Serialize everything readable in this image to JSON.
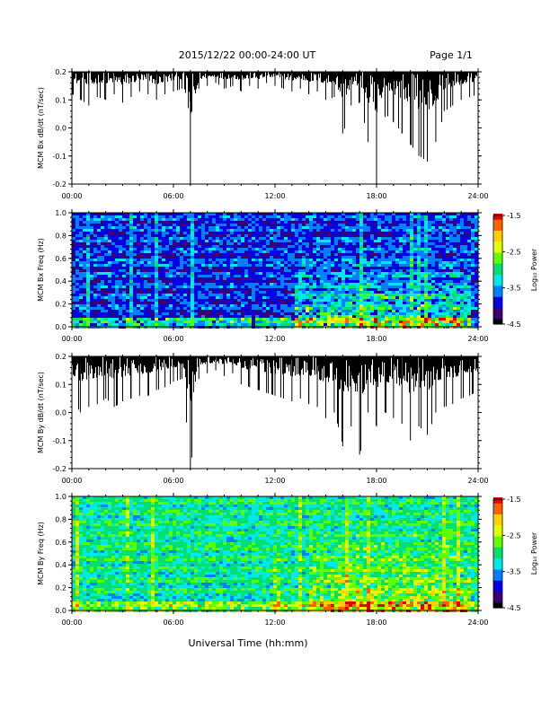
{
  "header": {
    "date_range": "2015/12/22  00:00-24:00 UT",
    "page": "Page 1/1"
  },
  "footer": {
    "xlabel": "Universal Time (hh:mm)"
  },
  "colors": {
    "trace": "#000000",
    "background": "#ffffff",
    "colormap": [
      "#000000",
      "#3a0070",
      "#0000e0",
      "#0080ff",
      "#00e8e8",
      "#00e070",
      "#60ff00",
      "#e0ff00",
      "#ffd000",
      "#ff6000",
      "#e00000"
    ]
  },
  "chart_data": [
    {
      "type": "line",
      "ylabel": "MCM Bx dB/dt (nT/sec)",
      "xlim": [
        0,
        24
      ],
      "ylim": [
        -0.2,
        0.2
      ],
      "yticks": [
        "-0.2",
        "-0.1",
        "0.0",
        "0.1",
        "0.2"
      ],
      "xticks": [
        "00:00",
        "06:00",
        "12:00",
        "18:00",
        "24:00"
      ],
      "series": [
        {
          "x": [
            0,
            0.5,
            1,
            1.5,
            2,
            2.5,
            3,
            3.5,
            4,
            4.5,
            5,
            5.5,
            6,
            6.5,
            7,
            7.5,
            8,
            8.5,
            9,
            9.5,
            10,
            10.5,
            11,
            11.5,
            12,
            12.5,
            13,
            13.5,
            14,
            14.5,
            15,
            15.5,
            16,
            16.5,
            17,
            17.5,
            18,
            18.5,
            19,
            19.5,
            20,
            20.5,
            21,
            21.5,
            22,
            22.5,
            23,
            23.5,
            24
          ],
          "low": [
            0.12,
            0.1,
            0.08,
            0.11,
            0.1,
            0.12,
            0.09,
            0.11,
            0.13,
            0.12,
            0.1,
            0.12,
            0.13,
            0.14,
            -0.2,
            0.14,
            0.15,
            0.16,
            0.14,
            0.15,
            0.13,
            0.15,
            0.14,
            0.16,
            0.15,
            0.14,
            0.13,
            0.14,
            0.12,
            0.13,
            0.1,
            0.11,
            -0.02,
            0.08,
            0.09,
            -0.05,
            -0.2,
            0.05,
            0.02,
            -0.02,
            -0.06,
            -0.1,
            -0.12,
            -0.05,
            0.06,
            0.08,
            0.1,
            0.11,
            0.12
          ],
          "high": [
            0.2,
            0.2,
            0.2,
            0.2,
            0.2,
            0.2,
            0.2,
            0.2,
            0.2,
            0.2,
            0.2,
            0.2,
            0.2,
            0.2,
            0.2,
            0.2,
            0.2,
            0.2,
            0.2,
            0.2,
            0.2,
            0.2,
            0.2,
            0.2,
            0.2,
            0.2,
            0.2,
            0.2,
            0.2,
            0.2,
            0.2,
            0.2,
            0.2,
            0.2,
            0.2,
            0.2,
            0.2,
            0.2,
            0.2,
            0.2,
            0.2,
            0.2,
            0.2,
            0.2,
            0.2,
            0.2,
            0.2,
            0.2,
            0.2
          ]
        }
      ]
    },
    {
      "type": "heatmap",
      "ylabel": "MCM Bx Freq (Hz)",
      "xlim": [
        0,
        24
      ],
      "ylim": [
        0.0,
        1.0
      ],
      "yticks": [
        "0.0",
        "0.2",
        "0.4",
        "0.6",
        "0.8",
        "1.0"
      ],
      "xticks": [
        "00:00",
        "06:00",
        "12:00",
        "18:00",
        "24:00"
      ],
      "colorbar": {
        "label": "Log₁₀ Power",
        "range": [
          -4.5,
          -1.5
        ],
        "ticks": [
          "-1.5",
          "-2.5",
          "-3.5",
          "-4.5"
        ]
      },
      "level_profile": {
        "base": -3.8,
        "low_freq_boost": 1.6,
        "active_hours": [
          [
            13,
            23.5
          ]
        ]
      }
    },
    {
      "type": "line",
      "ylabel": "MCM By dB/dt (nT/sec)",
      "xlim": [
        0,
        24
      ],
      "ylim": [
        -0.2,
        0.2
      ],
      "yticks": [
        "-0.2",
        "-0.1",
        "0.0",
        "0.1",
        "0.2"
      ],
      "xticks": [
        "00:00",
        "06:00",
        "12:00",
        "18:00",
        "24:00"
      ],
      "series": [
        {
          "x": [
            0,
            0.5,
            1,
            1.5,
            2,
            2.5,
            3,
            3.5,
            4,
            4.5,
            5,
            5.5,
            6,
            6.5,
            7,
            7.5,
            8,
            8.5,
            9,
            9.5,
            10,
            10.5,
            11,
            11.5,
            12,
            12.5,
            13,
            13.5,
            14,
            14.5,
            15,
            15.5,
            16,
            16.5,
            17,
            17.5,
            18,
            18.5,
            19,
            19.5,
            20,
            20.5,
            21,
            21.5,
            22,
            22.5,
            23,
            23.5,
            24
          ],
          "low": [
            0.04,
            0.0,
            0.02,
            0.03,
            0.05,
            0.02,
            0.04,
            0.05,
            0.06,
            0.06,
            0.08,
            0.09,
            0.11,
            0.12,
            -0.2,
            0.12,
            0.14,
            0.15,
            0.13,
            0.14,
            0.1,
            0.09,
            0.08,
            0.07,
            0.06,
            0.05,
            0.04,
            0.05,
            0.03,
            0.02,
            -0.02,
            0.0,
            -0.12,
            -0.05,
            -0.15,
            0.0,
            -0.05,
            0.0,
            -0.02,
            -0.04,
            -0.1,
            -0.05,
            -0.08,
            0.0,
            0.02,
            0.03,
            0.05,
            0.06,
            0.08
          ],
          "high": [
            0.2,
            0.2,
            0.2,
            0.2,
            0.2,
            0.2,
            0.2,
            0.2,
            0.2,
            0.2,
            0.2,
            0.2,
            0.2,
            0.2,
            0.2,
            0.2,
            0.2,
            0.2,
            0.2,
            0.2,
            0.2,
            0.2,
            0.2,
            0.2,
            0.2,
            0.2,
            0.2,
            0.2,
            0.2,
            0.2,
            0.2,
            0.2,
            0.2,
            0.2,
            0.2,
            0.2,
            0.2,
            0.2,
            0.2,
            0.2,
            0.2,
            0.2,
            0.2,
            0.2,
            0.2,
            0.2,
            0.2,
            0.2,
            0.2
          ]
        }
      ]
    },
    {
      "type": "heatmap",
      "ylabel": "MCM By Freq (Hz)",
      "xlim": [
        0,
        24
      ],
      "ylim": [
        0.0,
        1.0
      ],
      "yticks": [
        "0.0",
        "0.2",
        "0.4",
        "0.6",
        "0.8",
        "1.0"
      ],
      "xticks": [
        "00:00",
        "06:00",
        "12:00",
        "18:00",
        "24:00"
      ],
      "colorbar": {
        "label": "Log₁₀ Power",
        "range": [
          -4.5,
          -1.5
        ],
        "ticks": [
          "-1.5",
          "-2.5",
          "-3.5",
          "-4.5"
        ]
      },
      "level_profile": {
        "base": -3.05,
        "low_freq_boost": 1.2,
        "active_hours": [
          [
            11.8,
            12.2
          ],
          [
            14,
            23.5
          ]
        ]
      }
    }
  ]
}
